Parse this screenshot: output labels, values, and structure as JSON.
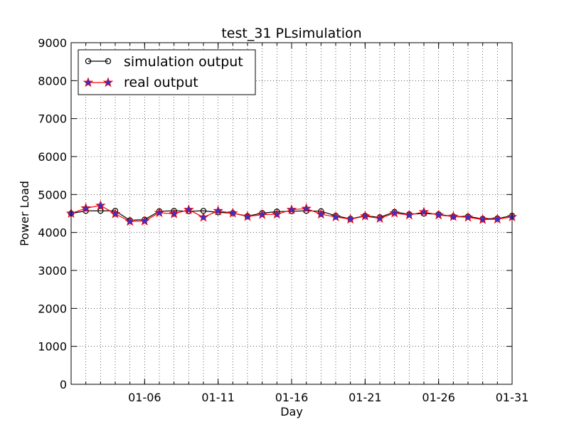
{
  "chart_data": {
    "type": "line",
    "title": "test_31 PLsimulation",
    "xlabel": "Day",
    "ylabel": "Power Load",
    "xlim": [
      "2014-01-01",
      "2014-01-31"
    ],
    "ylim": [
      0,
      9000
    ],
    "y_ticks": [
      0,
      1000,
      2000,
      3000,
      4000,
      5000,
      6000,
      7000,
      8000,
      9000
    ],
    "x_tick_dates": [
      "2014-01-06",
      "2014-01-11",
      "2014-01-16",
      "2014-01-21",
      "2014-01-26",
      "2014-01-31"
    ],
    "x_tick_labels": [
      "01-06",
      "01-11",
      "01-16",
      "01-21",
      "01-26",
      "01-31"
    ],
    "grid": true,
    "legend_position": "top-left",
    "x": [
      "2014-01-01",
      "2014-01-02",
      "2014-01-03",
      "2014-01-04",
      "2014-01-05",
      "2014-01-06",
      "2014-01-07",
      "2014-01-08",
      "2014-01-09",
      "2014-01-10",
      "2014-01-11",
      "2014-01-12",
      "2014-01-13",
      "2014-01-14",
      "2014-01-15",
      "2014-01-16",
      "2014-01-17",
      "2014-01-18",
      "2014-01-19",
      "2014-01-20",
      "2014-01-21",
      "2014-01-22",
      "2014-01-23",
      "2014-01-24",
      "2014-01-25",
      "2014-01-26",
      "2014-01-27",
      "2014-01-28",
      "2014-01-29",
      "2014-01-30",
      "2014-01-31"
    ],
    "series": [
      {
        "name": "simulation output",
        "color": "#000000",
        "marker": "circle",
        "values": [
          4500,
          4570,
          4570,
          4570,
          4320,
          4340,
          4560,
          4570,
          4560,
          4570,
          4530,
          4510,
          4430,
          4510,
          4550,
          4560,
          4570,
          4560,
          4440,
          4360,
          4440,
          4400,
          4540,
          4480,
          4500,
          4480,
          4420,
          4420,
          4360,
          4370,
          4440
        ]
      },
      {
        "name": "real output",
        "color": "#ff0000",
        "marker": "star",
        "marker_color": "#3333cc",
        "values": [
          4500,
          4640,
          4710,
          4490,
          4290,
          4300,
          4520,
          4490,
          4600,
          4400,
          4570,
          4510,
          4420,
          4470,
          4480,
          4600,
          4630,
          4480,
          4410,
          4350,
          4430,
          4370,
          4510,
          4460,
          4540,
          4460,
          4420,
          4400,
          4340,
          4350,
          4410
        ]
      }
    ]
  }
}
